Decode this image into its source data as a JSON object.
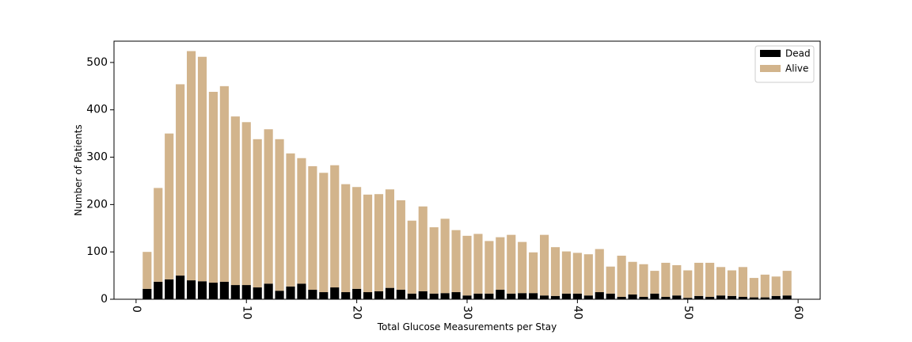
{
  "chart_data": {
    "type": "bar",
    "stacked": true,
    "xlabel": "Total Glucose Measurements per Stay",
    "ylabel": "Number of Patients",
    "xlim": [
      -2,
      62
    ],
    "ylim": [
      0,
      545
    ],
    "x_ticks": [
      0,
      10,
      20,
      30,
      40,
      50,
      60
    ],
    "y_ticks": [
      0,
      100,
      200,
      300,
      400,
      500
    ],
    "x_tick_rotation": -90,
    "legend_position": "top-right",
    "grid": false,
    "x": [
      1,
      2,
      3,
      4,
      5,
      6,
      7,
      8,
      9,
      10,
      11,
      12,
      13,
      14,
      15,
      16,
      17,
      18,
      19,
      20,
      21,
      22,
      23,
      24,
      25,
      26,
      27,
      28,
      29,
      30,
      31,
      32,
      33,
      34,
      35,
      36,
      37,
      38,
      39,
      40,
      41,
      42,
      43,
      44,
      45,
      46,
      47,
      48,
      49,
      50,
      51,
      52,
      53,
      54,
      55,
      56,
      57,
      58,
      59
    ],
    "series": [
      {
        "name": "Dead",
        "color": "#000000",
        "values": [
          22,
          37,
          42,
          50,
          40,
          38,
          35,
          37,
          30,
          30,
          25,
          33,
          18,
          27,
          33,
          20,
          15,
          25,
          15,
          22,
          15,
          17,
          24,
          20,
          12,
          17,
          12,
          13,
          15,
          8,
          12,
          12,
          20,
          12,
          13,
          13,
          8,
          7,
          12,
          12,
          8,
          15,
          12,
          5,
          10,
          5,
          12,
          5,
          8,
          3,
          7,
          5,
          8,
          7,
          5,
          4,
          4,
          7,
          8
        ]
      },
      {
        "name": "Alive",
        "color": "#d2b48c",
        "values": [
          78,
          198,
          308,
          404,
          484,
          474,
          403,
          413,
          356,
          344,
          313,
          326,
          320,
          281,
          265,
          261,
          252,
          258,
          228,
          215,
          206,
          205,
          208,
          189,
          154,
          179,
          140,
          157,
          131,
          126,
          126,
          111,
          111,
          124,
          108,
          86,
          128,
          103,
          89,
          86,
          87,
          91,
          57,
          87,
          69,
          69,
          48,
          72,
          64,
          58,
          70,
          72,
          60,
          54,
          63,
          41,
          48,
          41,
          52
        ]
      }
    ]
  }
}
